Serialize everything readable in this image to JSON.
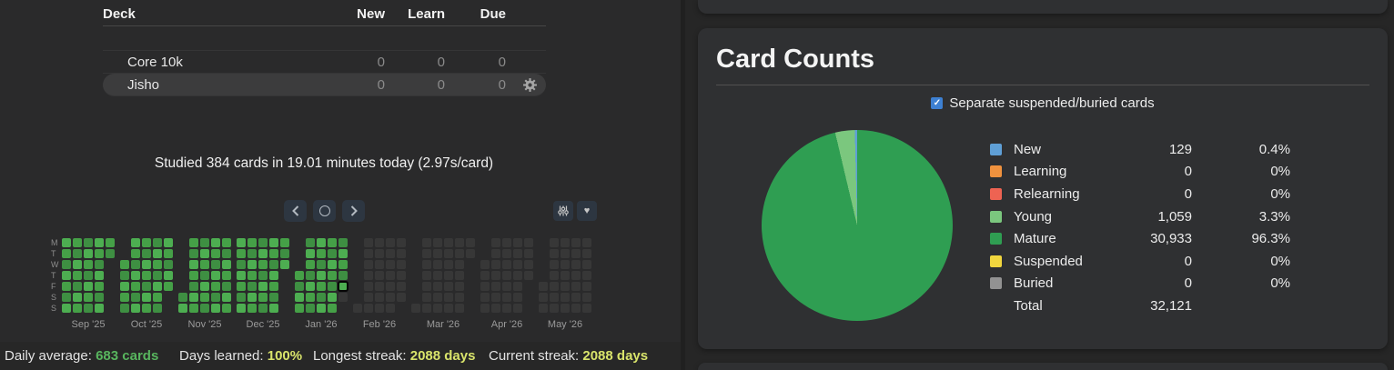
{
  "deck_panel": {
    "headers": {
      "deck": "Deck",
      "new": "New",
      "learn": "Learn",
      "due": "Due"
    },
    "rows": [
      {
        "name": "Core 10k",
        "new": "0",
        "learn": "0",
        "due": "0",
        "highlighted": false
      },
      {
        "name": "Jisho",
        "new": "0",
        "learn": "0",
        "due": "0",
        "highlighted": true
      }
    ],
    "studied_summary": "Studied 384 cards in 19.01 minutes today (2.97s/card)"
  },
  "heatmap": {
    "day_labels": [
      "M",
      "T",
      "W",
      "T",
      "F",
      "S",
      "S"
    ],
    "months": [
      {
        "label": "Sep '25",
        "year": 2025,
        "month": 9
      },
      {
        "label": "Oct '25",
        "year": 2025,
        "month": 10
      },
      {
        "label": "Nov '25",
        "year": 2025,
        "month": 11
      },
      {
        "label": "Dec '25",
        "year": 2025,
        "month": 12
      },
      {
        "label": "Jan '26",
        "year": 2026,
        "month": 1
      },
      {
        "label": "Feb '26",
        "year": 2026,
        "month": 2
      },
      {
        "label": "Mar '26",
        "year": 2026,
        "month": 3
      },
      {
        "label": "Apr '26",
        "year": 2026,
        "month": 4
      },
      {
        "label": "May '26",
        "year": 2026,
        "month": 5
      }
    ],
    "today": "2026-01-30",
    "colors": {
      "past_shades": [
        "#3e8f42",
        "#4dae51",
        "#45a047"
      ],
      "future": "#373737",
      "today_outline": "#060606"
    },
    "stats": [
      {
        "label": "Daily average:",
        "value": "683 cards",
        "color": "#58b55e"
      },
      {
        "label": "Days learned:",
        "value": "100%",
        "color": "#d9e46b"
      },
      {
        "label": "Longest streak:",
        "value": "2088 days",
        "color": "#d9e46b"
      },
      {
        "label": "Current streak:",
        "value": "2088 days",
        "color": "#d9e46b"
      }
    ]
  },
  "card_counts": {
    "title": "Card Counts",
    "checkbox_label": "Separate suspended/buried cards",
    "checkbox_checked": true,
    "checkbox_glyph": "✓",
    "legend": [
      {
        "label": "New",
        "count": "129",
        "pct": "0.4%",
        "color": "#5f9fd6"
      },
      {
        "label": "Learning",
        "count": "0",
        "pct": "0%",
        "color": "#f0923e"
      },
      {
        "label": "Relearning",
        "count": "0",
        "pct": "0%",
        "color": "#ee6352"
      },
      {
        "label": "Young",
        "count": "1,059",
        "pct": "3.3%",
        "color": "#7bc77e"
      },
      {
        "label": "Mature",
        "count": "30,933",
        "pct": "96.3%",
        "color": "#2f9e52"
      },
      {
        "label": "Suspended",
        "count": "0",
        "pct": "0%",
        "color": "#f1d63e"
      },
      {
        "label": "Buried",
        "count": "0",
        "pct": "0%",
        "color": "#929292"
      }
    ],
    "total": {
      "label": "Total",
      "count": "32,121"
    }
  },
  "chart_data": {
    "type": "pie",
    "title": "Card Counts",
    "labels": [
      "New",
      "Learning",
      "Relearning",
      "Young",
      "Mature",
      "Suspended",
      "Buried"
    ],
    "values": [
      129,
      0,
      0,
      1059,
      30933,
      0,
      0
    ],
    "percentages": [
      0.4,
      0,
      0,
      3.3,
      96.3,
      0,
      0
    ],
    "total": 32121,
    "colors": [
      "#5f9fd6",
      "#f0923e",
      "#ee6352",
      "#7bc77e",
      "#2f9e52",
      "#f1d63e",
      "#929292"
    ],
    "slice_draw_order_clockwise_from_top": [
      4,
      3,
      0
    ],
    "legend_position": "right"
  },
  "icons": {
    "heart": "♥",
    "gear": "gear",
    "filter": "sliders",
    "sync": "circle",
    "prev": "chevron-left",
    "next": "chevron-right"
  }
}
